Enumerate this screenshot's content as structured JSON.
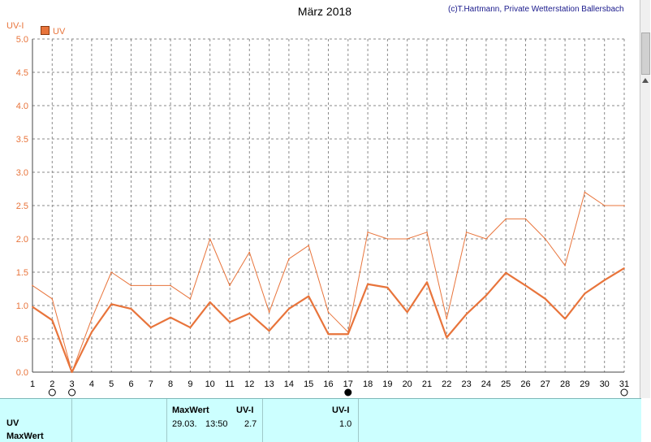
{
  "header": {
    "title": "März 2018",
    "credit": "(c)T.Hartmann, Private Wetterstation Ballersbach",
    "y_axis_label": "UV-I",
    "legend_label": "UV"
  },
  "colors": {
    "series": "#e8743b",
    "grid": "#8a8a8a",
    "panel": "#ccffff"
  },
  "chart_data": {
    "type": "line",
    "title": "März 2018",
    "ylabel": "UV-I",
    "ylim": [
      0,
      5
    ],
    "yticks": [
      "0.0",
      "0.5",
      "1.0",
      "1.5",
      "2.0",
      "2.5",
      "3.0",
      "3.5",
      "4.0",
      "4.5",
      "5.0"
    ],
    "x": [
      1,
      2,
      3,
      4,
      5,
      6,
      7,
      8,
      9,
      10,
      11,
      12,
      13,
      14,
      15,
      16,
      17,
      18,
      19,
      20,
      21,
      22,
      23,
      24,
      25,
      26,
      27,
      28,
      29,
      30,
      31
    ],
    "xticks": [
      "1",
      "2",
      "3",
      "4",
      "5",
      "6",
      "7",
      "8",
      "9",
      "10",
      "11",
      "12",
      "13",
      "14",
      "15",
      "16",
      "17",
      "18",
      "19",
      "20",
      "21",
      "22",
      "23",
      "24",
      "25",
      "26",
      "27",
      "28",
      "29",
      "30",
      "31"
    ],
    "moon_markers": [
      {
        "day": 2,
        "phase": "full"
      },
      {
        "day": 3,
        "phase": "full"
      },
      {
        "day": 17,
        "phase": "new"
      },
      {
        "day": 31,
        "phase": "full"
      }
    ],
    "series": [
      {
        "name": "UV",
        "role": "max",
        "values": [
          1.3,
          1.1,
          0.0,
          0.8,
          1.5,
          1.3,
          1.3,
          1.3,
          1.1,
          2.0,
          1.3,
          1.8,
          0.9,
          1.7,
          1.9,
          0.9,
          0.6,
          2.1,
          2.0,
          2.0,
          2.1,
          0.8,
          2.1,
          2.0,
          2.3,
          2.3,
          2.0,
          1.6,
          2.7,
          2.5,
          2.5
        ]
      },
      {
        "name": "UV",
        "role": "mean",
        "values": [
          0.98,
          0.78,
          0.0,
          0.6,
          1.02,
          0.95,
          0.67,
          0.82,
          0.67,
          1.05,
          0.75,
          0.88,
          0.62,
          0.95,
          1.14,
          0.57,
          0.57,
          1.32,
          1.27,
          0.9,
          1.35,
          0.52,
          0.87,
          1.15,
          1.49,
          1.3,
          1.1,
          0.8,
          1.18,
          1.38,
          1.56
        ]
      }
    ],
    "grid": true,
    "legend": "top-left"
  },
  "panel": {
    "row1": "UV",
    "row2": "MaxWert",
    "maxwert_header": "MaxWert",
    "uvi_header_1": "UV-I",
    "uvi_header_2": "UV-I",
    "date": "29.03.",
    "time": "13:50",
    "value_1": "2.7",
    "value_2": "1.0"
  }
}
